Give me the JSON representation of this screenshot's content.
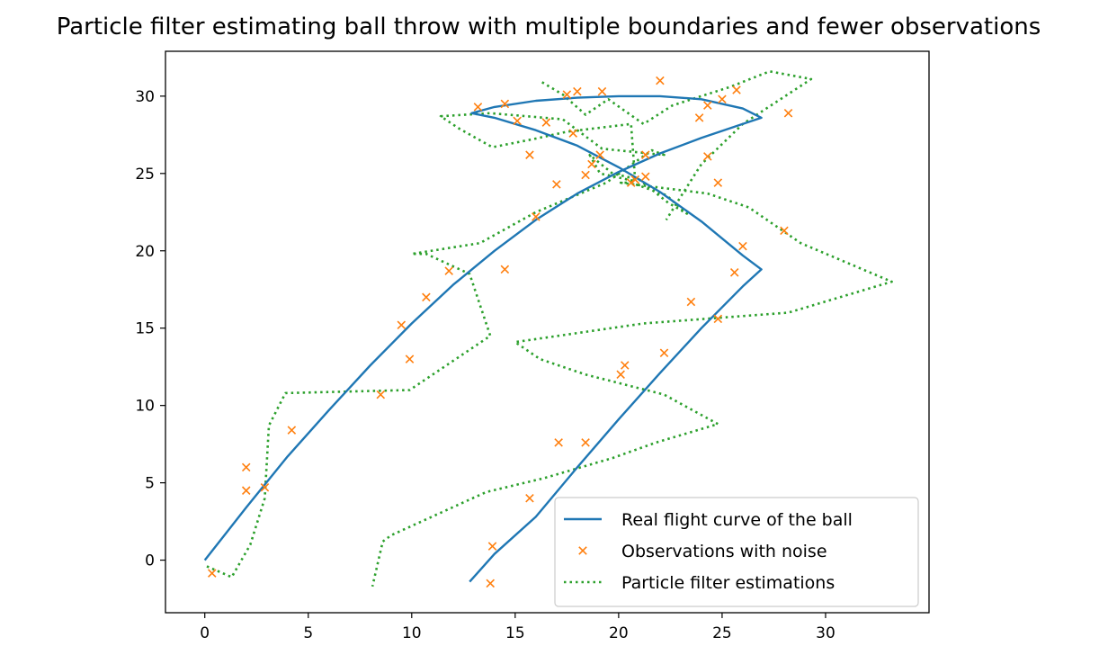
{
  "chart_data": {
    "type": "line",
    "title": "Particle filter estimating ball throw with multiple boundaries and fewer observations",
    "xlabel": "",
    "ylabel": "",
    "xlim": [
      -1.9,
      35.0
    ],
    "ylim": [
      -3.4,
      32.9
    ],
    "xticks": [
      0,
      5,
      10,
      15,
      20,
      25,
      30
    ],
    "yticks": [
      0,
      5,
      10,
      15,
      20,
      25,
      30
    ],
    "grid": false,
    "legend_position": "lower right",
    "colors": {
      "real": "#1f77b4",
      "observations": "#ff7f0e",
      "particle": "#2ca02c"
    },
    "series": [
      {
        "name": "Real flight curve of the ball",
        "style": "solid-line",
        "points": [
          [
            0,
            0
          ],
          [
            2,
            3.4
          ],
          [
            4,
            6.7
          ],
          [
            6,
            9.7
          ],
          [
            8,
            12.6
          ],
          [
            10,
            15.3
          ],
          [
            12,
            17.8
          ],
          [
            14,
            20.0
          ],
          [
            16,
            22.0
          ],
          [
            18,
            23.7
          ],
          [
            20,
            25.1
          ],
          [
            22,
            26.3
          ],
          [
            24,
            27.3
          ],
          [
            26,
            28.2
          ],
          [
            26.9,
            28.6
          ],
          [
            26,
            29.2
          ],
          [
            24,
            29.8
          ],
          [
            22,
            30.0
          ],
          [
            20,
            30.0
          ],
          [
            18,
            29.9
          ],
          [
            16,
            29.7
          ],
          [
            14,
            29.3
          ],
          [
            12.9,
            28.9
          ],
          [
            14,
            28.6
          ],
          [
            16,
            27.8
          ],
          [
            18,
            26.8
          ],
          [
            20,
            25.4
          ],
          [
            22,
            23.8
          ],
          [
            24,
            21.9
          ],
          [
            26,
            19.7
          ],
          [
            26.9,
            18.8
          ],
          [
            26,
            17.7
          ],
          [
            24,
            15.0
          ],
          [
            22,
            12.1
          ],
          [
            20,
            9.1
          ],
          [
            18,
            6.0
          ],
          [
            16,
            2.8
          ],
          [
            14,
            0.4
          ],
          [
            12.8,
            -1.4
          ]
        ]
      },
      {
        "name": "Observations with noise",
        "style": "x-marker",
        "points": [
          [
            0.35,
            -0.85
          ],
          [
            2.0,
            4.5
          ],
          [
            2.0,
            6.0
          ],
          [
            2.9,
            4.7
          ],
          [
            4.2,
            8.4
          ],
          [
            8.5,
            10.7
          ],
          [
            9.5,
            15.2
          ],
          [
            9.9,
            13.0
          ],
          [
            10.7,
            17.0
          ],
          [
            11.8,
            18.7
          ],
          [
            14.5,
            18.8
          ],
          [
            16.0,
            22.2
          ],
          [
            13.2,
            29.3
          ],
          [
            14.5,
            29.5
          ],
          [
            15.1,
            28.4
          ],
          [
            16.5,
            28.3
          ],
          [
            15.7,
            26.2
          ],
          [
            17.0,
            24.3
          ],
          [
            17.5,
            30.1
          ],
          [
            18.0,
            30.3
          ],
          [
            17.8,
            27.6
          ],
          [
            18.4,
            24.9
          ],
          [
            18.7,
            25.6
          ],
          [
            19.1,
            26.2
          ],
          [
            19.2,
            30.3
          ],
          [
            20.6,
            24.4
          ],
          [
            20.8,
            24.6
          ],
          [
            21.3,
            26.2
          ],
          [
            21.3,
            24.8
          ],
          [
            22.0,
            31.0
          ],
          [
            23.9,
            28.6
          ],
          [
            24.3,
            29.4
          ],
          [
            24.3,
            26.1
          ],
          [
            24.8,
            24.4
          ],
          [
            25.0,
            29.8
          ],
          [
            25.7,
            30.4
          ],
          [
            28.2,
            28.9
          ],
          [
            28.0,
            21.3
          ],
          [
            26.0,
            20.3
          ],
          [
            25.6,
            18.6
          ],
          [
            23.5,
            16.7
          ],
          [
            24.8,
            15.6
          ],
          [
            22.2,
            13.4
          ],
          [
            20.3,
            12.6
          ],
          [
            20.1,
            12.0
          ],
          [
            17.1,
            7.6
          ],
          [
            18.4,
            7.6
          ],
          [
            15.7,
            4.0
          ],
          [
            13.9,
            0.9
          ],
          [
            13.8,
            -1.5
          ]
        ]
      },
      {
        "name": "Particle filter estimations",
        "style": "dotted-line",
        "points": [
          [
            0.1,
            -0.4
          ],
          [
            1.3,
            -1.1
          ],
          [
            2.2,
            1.0
          ],
          [
            2.9,
            4.0
          ],
          [
            3.1,
            8.7
          ],
          [
            3.9,
            10.8
          ],
          [
            9.9,
            11.0
          ],
          [
            13.8,
            14.5
          ],
          [
            12.8,
            18.5
          ],
          [
            10.7,
            19.8
          ],
          [
            10.0,
            19.8
          ],
          [
            13.3,
            20.5
          ],
          [
            16.0,
            22.5
          ],
          [
            19.4,
            24.4
          ],
          [
            21.6,
            26.5
          ],
          [
            22.2,
            26.2
          ],
          [
            19.2,
            26.6
          ],
          [
            17.3,
            28.5
          ],
          [
            13.8,
            28.9
          ],
          [
            11.4,
            28.7
          ],
          [
            12.3,
            27.9
          ],
          [
            13.9,
            26.7
          ],
          [
            15.8,
            27.2
          ],
          [
            17.5,
            27.7
          ],
          [
            20.6,
            28.2
          ],
          [
            20.8,
            24.5
          ],
          [
            19.1,
            25.0
          ],
          [
            18.6,
            26.2
          ],
          [
            19.7,
            25.0
          ],
          [
            21.0,
            24.6
          ],
          [
            22.4,
            23.1
          ],
          [
            23.3,
            22.4
          ],
          [
            22.3,
            23.6
          ],
          [
            20.6,
            24.4
          ],
          [
            20.1,
            24.4
          ],
          [
            24.3,
            23.7
          ],
          [
            26.3,
            22.8
          ],
          [
            28.8,
            20.5
          ],
          [
            33.2,
            18.0
          ],
          [
            28.2,
            16.0
          ],
          [
            21.2,
            15.3
          ],
          [
            15.0,
            14.1
          ],
          [
            16.2,
            13.0
          ],
          [
            18.4,
            12.0
          ],
          [
            22.2,
            10.7
          ],
          [
            24.8,
            8.8
          ],
          [
            21.8,
            7.6
          ],
          [
            19.7,
            6.6
          ],
          [
            16.4,
            5.3
          ],
          [
            13.6,
            4.4
          ],
          [
            9.0,
            1.6
          ],
          [
            8.6,
            1.2
          ],
          [
            8.1,
            -1.7
          ]
        ]
      },
      {
        "name": "",
        "style": "dotted-line",
        "points": [
          [
            16.3,
            30.9
          ],
          [
            17.3,
            30.1
          ],
          [
            18.4,
            28.8
          ],
          [
            19.5,
            29.8
          ],
          [
            21.2,
            28.2
          ],
          [
            22.6,
            29.4
          ],
          [
            25.4,
            30.6
          ],
          [
            27.3,
            31.6
          ],
          [
            29.3,
            31.1
          ],
          [
            26.0,
            28.2
          ],
          [
            24.0,
            25.6
          ],
          [
            23.0,
            23.5
          ],
          [
            22.3,
            22.0
          ]
        ]
      }
    ]
  }
}
